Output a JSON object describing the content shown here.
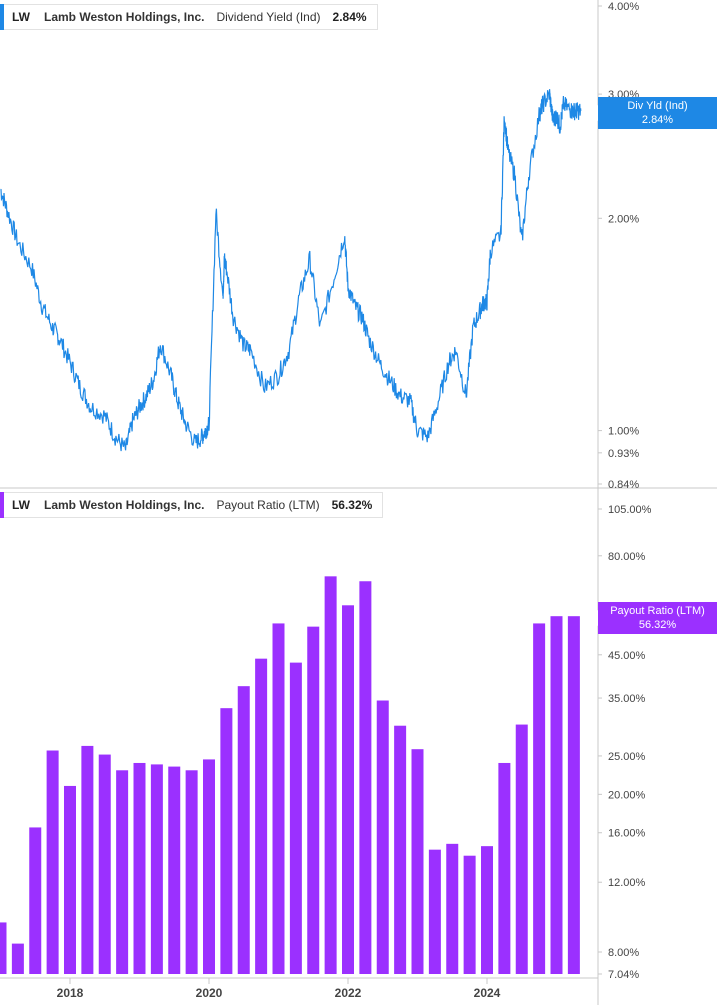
{
  "colors": {
    "yield": "#1e88e5",
    "payout": "#9b30ff",
    "axis": "#c8c8c8",
    "text": "#444444"
  },
  "top_legend": {
    "ticker": "LW",
    "company": "Lamb Weston Holdings, Inc.",
    "metric": "Dividend Yield (Ind)",
    "value": "2.84%"
  },
  "bottom_legend": {
    "ticker": "LW",
    "company": "Lamb Weston Holdings, Inc.",
    "metric": "Payout Ratio (LTM)",
    "value": "56.32%"
  },
  "top_tag": {
    "label": "Div Yld (Ind)",
    "value": "2.84%"
  },
  "bottom_tag": {
    "label": "Payout Ratio (LTM)",
    "value": "56.32%"
  },
  "chart_data": [
    {
      "type": "line",
      "title": "",
      "series": [
        {
          "name": "Dividend Yield (Ind)",
          "x": [
            2017.0,
            2017.1,
            2017.25,
            2017.45,
            2017.6,
            2017.75,
            2017.85,
            2018.0,
            2018.15,
            2018.3,
            2018.5,
            2018.65,
            2018.8,
            2018.9,
            2019.0,
            2019.1,
            2019.2,
            2019.3,
            2019.45,
            2019.55,
            2019.65,
            2019.8,
            2019.9,
            2019.95,
            2020.0,
            2020.1,
            2020.2,
            2020.22,
            2020.25,
            2020.35,
            2020.5,
            2020.6,
            2020.8,
            2021.0,
            2021.15,
            2021.3,
            2021.45,
            2021.6,
            2021.8,
            2021.95,
            2022.0,
            2022.1,
            2022.2,
            2022.3,
            2022.45,
            2022.6,
            2022.75,
            2022.9,
            2023.0,
            2023.15,
            2023.3,
            2023.45,
            2023.55,
            2023.7,
            2023.8,
            2023.9,
            2023.95,
            2024.0,
            2024.05,
            2024.2,
            2024.25,
            2024.3,
            2024.4,
            2024.5,
            2024.6,
            2024.75,
            2024.8,
            2024.9,
            2024.95,
            2025.0,
            2025.05,
            2025.1,
            2025.2,
            2025.25,
            2025.3,
            2025.35
          ],
          "y": [
            2.2,
            2.05,
            1.85,
            1.7,
            1.5,
            1.4,
            1.35,
            1.25,
            1.15,
            1.08,
            1.05,
            0.98,
            0.94,
            1.03,
            1.08,
            1.12,
            1.18,
            1.33,
            1.2,
            1.1,
            1.03,
            0.96,
            0.98,
            1.0,
            1.02,
            2.05,
            1.55,
            1.75,
            1.7,
            1.45,
            1.32,
            1.3,
            1.15,
            1.2,
            1.3,
            1.55,
            1.75,
            1.4,
            1.65,
            1.9,
            1.6,
            1.5,
            1.45,
            1.35,
            1.25,
            1.18,
            1.12,
            1.1,
            1.0,
            0.98,
            1.1,
            1.25,
            1.3,
            1.12,
            1.4,
            1.48,
            1.52,
            1.52,
            1.8,
            1.9,
            2.8,
            2.5,
            2.3,
            1.85,
            2.3,
            2.8,
            2.9,
            3.0,
            2.75,
            2.8,
            2.7,
            2.9,
            2.85,
            2.84,
            2.84,
            2.84
          ]
        }
      ],
      "yscale": "log",
      "yticks": [
        "4.00%",
        "3.00%",
        "2.00%",
        "1.00%",
        "0.93%",
        "0.84%"
      ],
      "ylim": [
        0.84,
        4.0
      ],
      "legend_position": "top-left"
    },
    {
      "type": "bar",
      "title": "",
      "series": [
        {
          "name": "Payout Ratio (LTM)",
          "x": [
            2017.0,
            2017.25,
            2017.5,
            2017.75,
            2018.0,
            2018.25,
            2018.5,
            2018.75,
            2019.0,
            2019.25,
            2019.5,
            2019.75,
            2020.0,
            2020.25,
            2020.5,
            2020.75,
            2021.0,
            2021.25,
            2021.5,
            2021.75,
            2022.0,
            2022.25,
            2022.5,
            2022.75,
            2023.0,
            2023.25,
            2023.5,
            2023.75,
            2024.0,
            2024.25,
            2024.5,
            2024.75,
            2025.0,
            2025.25
          ],
          "values": [
            9.5,
            8.4,
            16.5,
            25.8,
            21.0,
            26.5,
            25.2,
            23.0,
            24.0,
            23.8,
            23.5,
            23.0,
            24.5,
            33.0,
            37.5,
            44.0,
            54.0,
            43.0,
            53.0,
            71.0,
            60.0,
            69.0,
            34.5,
            29.8,
            26.0,
            14.5,
            15.0,
            14.0,
            14.8,
            24.0,
            30.0,
            54.0,
            56.32,
            56.32
          ]
        }
      ],
      "yscale": "log",
      "yticks": [
        "105.00%",
        "80.00%",
        "45.00%",
        "35.00%",
        "25.00%",
        "20.00%",
        "16.00%",
        "12.00%",
        "8.00%",
        "7.04%"
      ],
      "ylim": [
        7.04,
        105.0
      ],
      "xticks": [
        "2018",
        "2020",
        "2022",
        "2024"
      ],
      "legend_position": "top-left"
    }
  ]
}
